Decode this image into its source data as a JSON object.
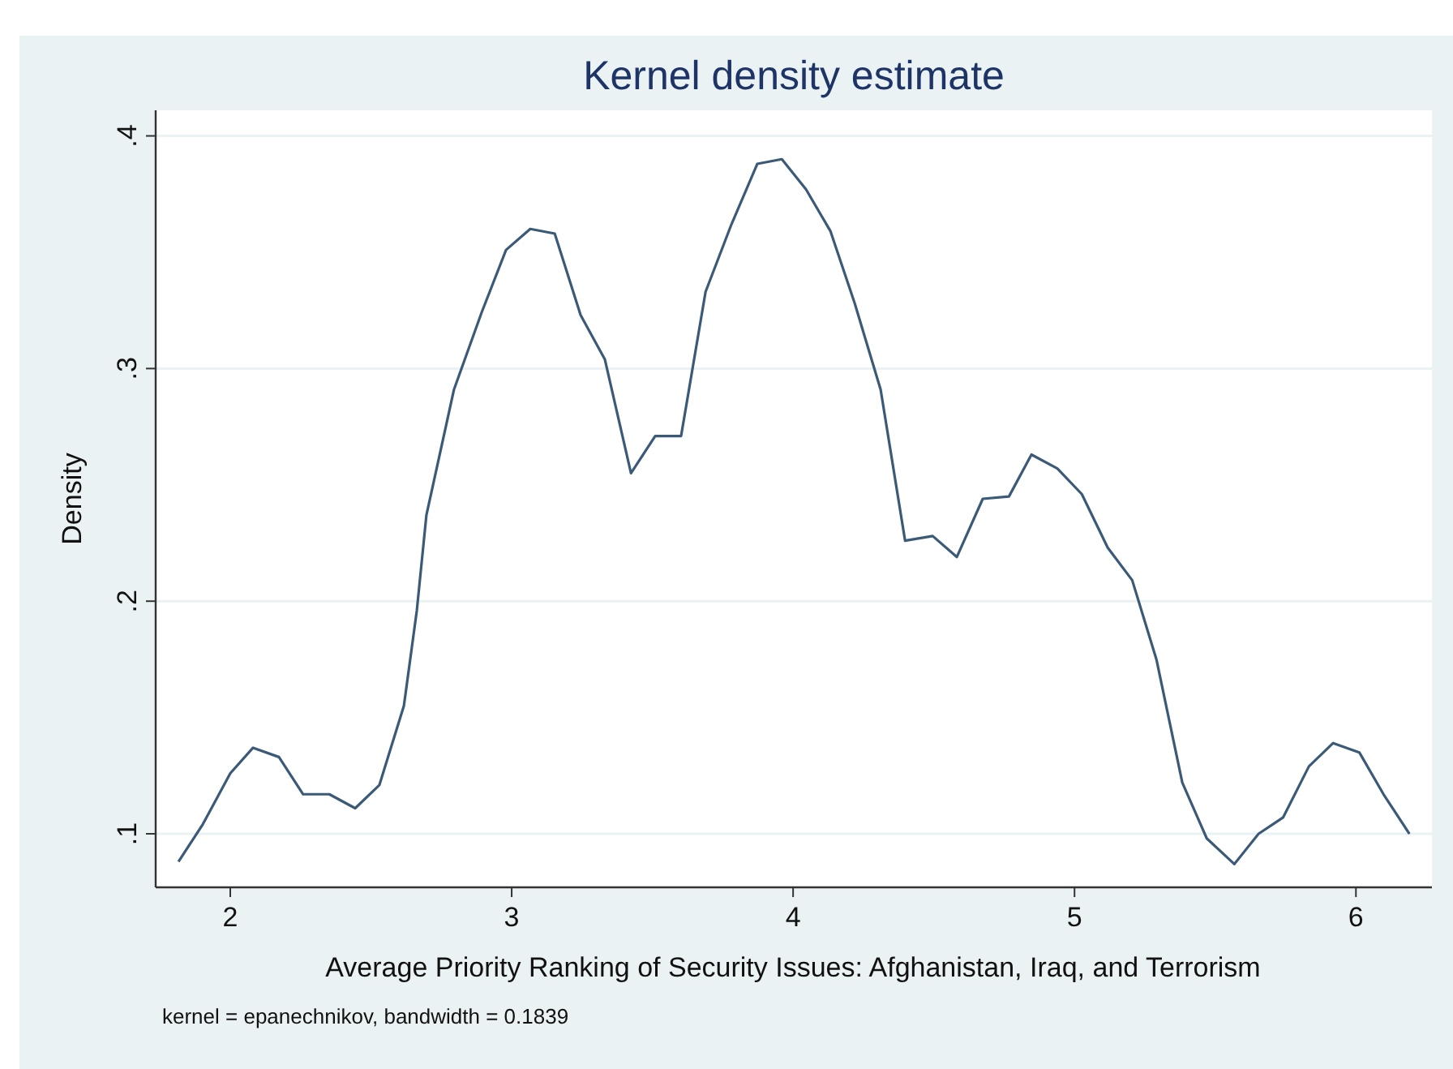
{
  "chart_data": {
    "type": "line",
    "title": "Kernel density estimate",
    "xlabel": "Average Priority Ranking of Security Issues: Afghanistan, Iraq, and Terrorism",
    "ylabel": "Density",
    "annotations": [
      "kernel = epanechnikov, bandwidth = 0.1839"
    ],
    "x": [
      1.816,
      1.902,
      2.0,
      2.081,
      2.173,
      2.259,
      2.352,
      2.444,
      2.53,
      2.617,
      2.663,
      2.697,
      2.795,
      2.893,
      2.98,
      3.066,
      3.153,
      3.245,
      3.331,
      3.424,
      3.51,
      3.602,
      3.689,
      3.781,
      3.873,
      3.96,
      4.046,
      4.133,
      4.219,
      4.311,
      4.398,
      4.496,
      4.582,
      4.674,
      4.767,
      4.847,
      4.939,
      5.026,
      5.118,
      5.205,
      5.291,
      5.383,
      5.47,
      5.568,
      5.654,
      5.741,
      5.833,
      5.919,
      6.012,
      6.098,
      6.19
    ],
    "series": [
      {
        "color": "#3b5a78",
        "values": [
          0.088,
          0.104,
          0.126,
          0.137,
          0.133,
          0.117,
          0.117,
          0.111,
          0.121,
          0.155,
          0.196,
          0.237,
          0.291,
          0.324,
          0.351,
          0.36,
          0.358,
          0.323,
          0.304,
          0.255,
          0.271,
          0.271,
          0.333,
          0.362,
          0.388,
          0.39,
          0.377,
          0.359,
          0.328,
          0.291,
          0.226,
          0.228,
          0.219,
          0.244,
          0.245,
          0.263,
          0.257,
          0.246,
          0.223,
          0.209,
          0.175,
          0.122,
          0.098,
          0.087,
          0.1,
          0.107,
          0.129,
          0.139,
          0.135,
          0.117,
          0.1
        ]
      }
    ],
    "xlim": [
      1.735,
      6.27
    ],
    "ylim": [
      0.077,
      0.411
    ],
    "xticks": [
      2,
      3,
      4,
      5,
      6
    ],
    "yticks": [
      {
        "value": 0.1,
        "label": ".1"
      },
      {
        "value": 0.2,
        "label": ".2"
      },
      {
        "value": 0.3,
        "label": ".3"
      },
      {
        "value": 0.4,
        "label": ".4"
      }
    ],
    "grid": "y",
    "marker": "none",
    "line_style": "solid"
  }
}
